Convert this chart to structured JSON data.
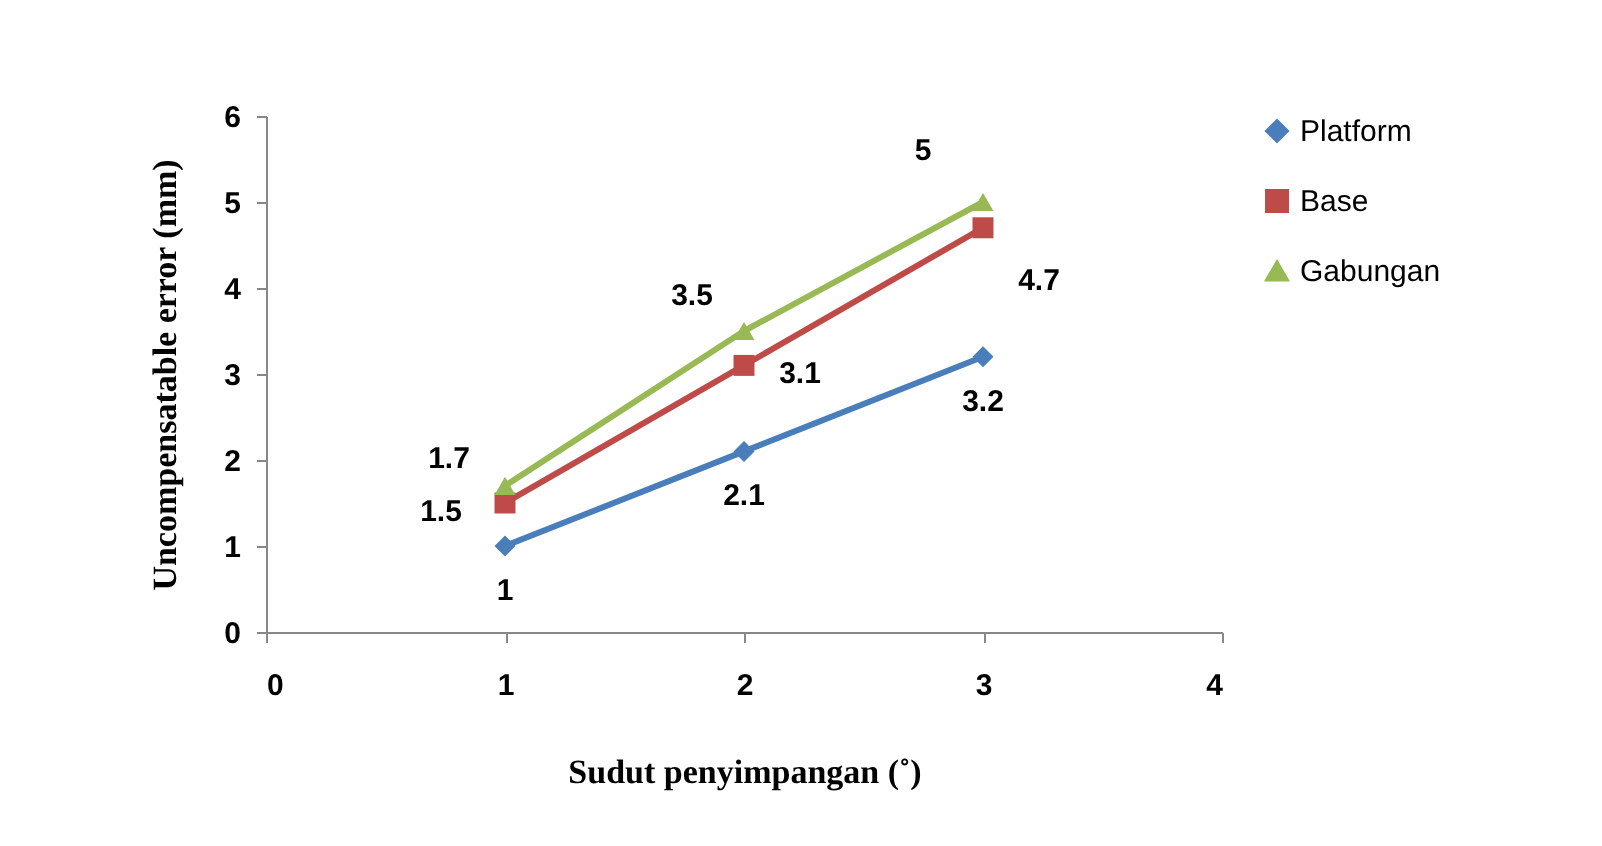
{
  "chart_data": {
    "type": "line",
    "xlabel": "Sudut penyimpangan (˚)",
    "ylabel": "Uncompensatable error (mm)",
    "x": [
      1,
      2,
      3
    ],
    "series": [
      {
        "name": "Platform",
        "color": "#4a7ebb",
        "marker": "diamond",
        "values": [
          1,
          2.1,
          3.2
        ]
      },
      {
        "name": "Base",
        "color": "#be4b48",
        "marker": "square",
        "values": [
          1.5,
          3.1,
          4.7
        ]
      },
      {
        "name": "Gabungan",
        "color": "#98b954",
        "marker": "triangle",
        "values": [
          1.7,
          3.5,
          5
        ]
      }
    ],
    "xlim": [
      0,
      4
    ],
    "xticks": [
      0,
      1,
      2,
      3,
      4
    ],
    "ylim": [
      0,
      6
    ],
    "yticks": [
      0,
      1,
      2,
      3,
      4,
      5,
      6
    ],
    "grid": false,
    "legend": "right",
    "data_labels": true
  }
}
